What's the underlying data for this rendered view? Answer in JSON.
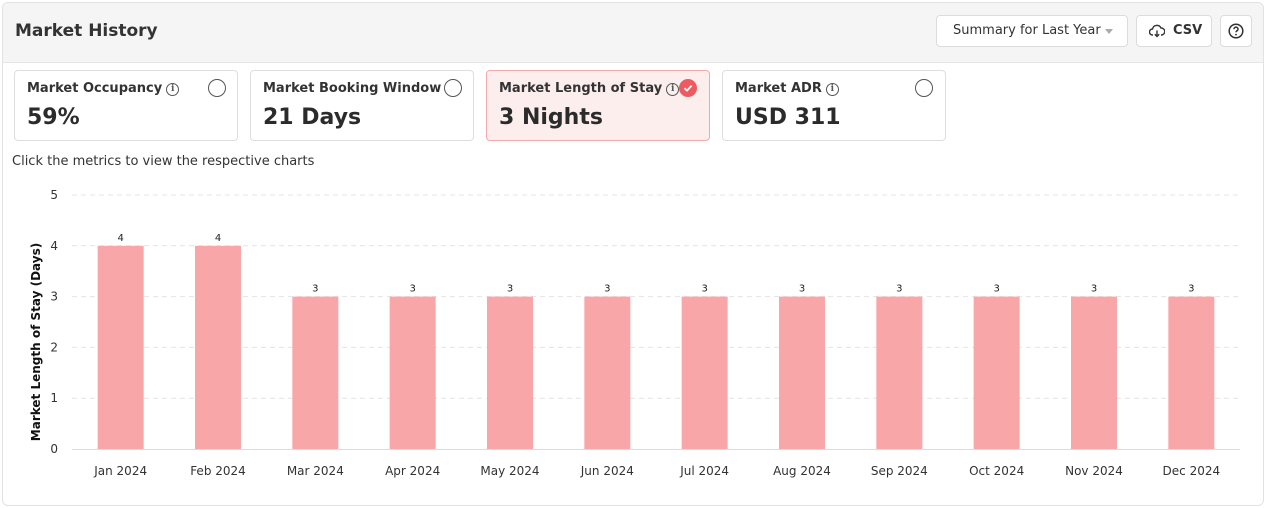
{
  "header": {
    "title": "Market History",
    "period_select": "Summary for Last Year",
    "csv_label": "CSV"
  },
  "metrics": [
    {
      "label": "Market Occupancy",
      "value": "59%",
      "selected": false
    },
    {
      "label": "Market Booking Window",
      "value": "21 Days",
      "selected": false
    },
    {
      "label": "Market Length of Stay",
      "value": "3 Nights",
      "selected": true
    },
    {
      "label": "Market ADR",
      "value": "USD 311",
      "selected": false
    }
  ],
  "hint": "Click the metrics to view the respective charts",
  "colors": {
    "bar": "#f9a6a8",
    "accent": "#ee5a5f",
    "grid": "#e4e4e4"
  },
  "chart_data": {
    "type": "bar",
    "categories": [
      "Jan 2024",
      "Feb 2024",
      "Mar 2024",
      "Apr 2024",
      "May 2024",
      "Jun 2024",
      "Jul 2024",
      "Aug 2024",
      "Sep 2024",
      "Oct 2024",
      "Nov 2024",
      "Dec 2024"
    ],
    "values": [
      4,
      4,
      3,
      3,
      3,
      3,
      3,
      3,
      3,
      3,
      3,
      3
    ],
    "ylabel": "Market Length of Stay (Days)",
    "ylim": [
      0,
      5
    ],
    "yticks": [
      0,
      1,
      2,
      3,
      4,
      5
    ],
    "grid": true
  }
}
